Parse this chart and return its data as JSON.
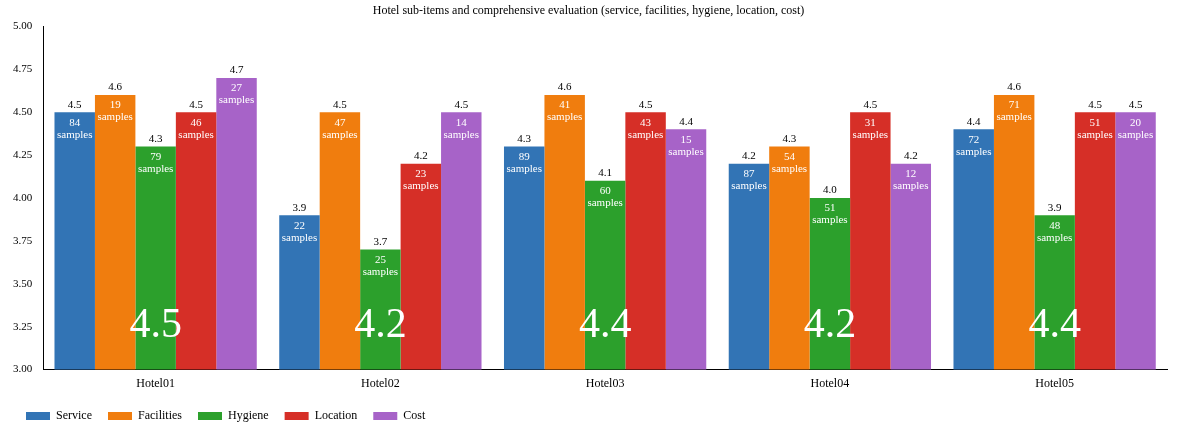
{
  "chart_data": {
    "type": "bar",
    "title": "Hotel sub-items and comprehensive evaluation (service, facilities, hygiene, location, cost)",
    "categories": [
      "Hotel01",
      "Hotel02",
      "Hotel03",
      "Hotel04",
      "Hotel05"
    ],
    "series": [
      {
        "name": "Service",
        "color": "#3274b5",
        "values": [
          4.5,
          3.9,
          4.3,
          4.2,
          4.4
        ],
        "value_labels": [
          "4.5",
          "3.9",
          "4.3",
          "4.2",
          "4.4"
        ]
      },
      {
        "name": "Facilities",
        "color": "#f07d0e",
        "values": [
          4.6,
          4.5,
          4.6,
          4.3,
          4.6
        ],
        "value_labels": [
          "4.6",
          "4.5",
          "4.6",
          "4.3",
          "4.6"
        ]
      },
      {
        "name": "Hygiene",
        "color": "#2ca02c",
        "values": [
          4.3,
          3.7,
          4.1,
          4.0,
          3.9
        ],
        "value_labels": [
          "4.3",
          "3.7",
          "4.1",
          "4.0",
          "3.9"
        ]
      },
      {
        "name": "Location",
        "color": "#d62f27",
        "values": [
          4.5,
          4.2,
          4.5,
          4.5,
          4.5
        ],
        "value_labels": [
          "4.5",
          "4.2",
          "4.5",
          "4.5",
          "4.5"
        ]
      },
      {
        "name": "Cost",
        "color": "#a763c8",
        "values": [
          4.7,
          4.5,
          4.4,
          4.2,
          4.5
        ],
        "value_labels": [
          "4.7",
          "4.5",
          "4.4",
          "4.2",
          "4.5"
        ]
      }
    ],
    "ylim": [
      3,
      5
    ],
    "yticks": [
      {
        "value": 3,
        "label": "3.00"
      },
      {
        "value": 3.25,
        "label": "3.25"
      },
      {
        "value": 3.5,
        "label": "3.50"
      },
      {
        "value": 3.75,
        "label": "3.75"
      },
      {
        "value": 4,
        "label": "4.00"
      },
      {
        "value": 4.25,
        "label": "4.25"
      },
      {
        "value": 4.5,
        "label": "4.50"
      },
      {
        "value": 4.75,
        "label": "4.75"
      },
      {
        "value": 5,
        "label": "5.00"
      }
    ],
    "annotations": [
      "84 samples",
      "22 samples",
      "89 samples",
      "87 samples",
      "72 samples",
      "19 samples",
      "47 samples",
      "41 samples",
      "54 samples",
      "71 samples",
      "79 samples",
      "25 samples",
      "60 samples",
      "51 samples",
      "48 samples",
      "46 samples",
      "23 samples",
      "43 samples",
      "31 samples",
      "51 samples",
      "27 samples",
      "14 samples",
      "15 samples",
      "12 samples",
      "20 samples",
      "4.5",
      "4.2",
      "4.4",
      "4.2",
      "4.4"
    ],
    "grid": false,
    "legend": "bottom left"
  }
}
